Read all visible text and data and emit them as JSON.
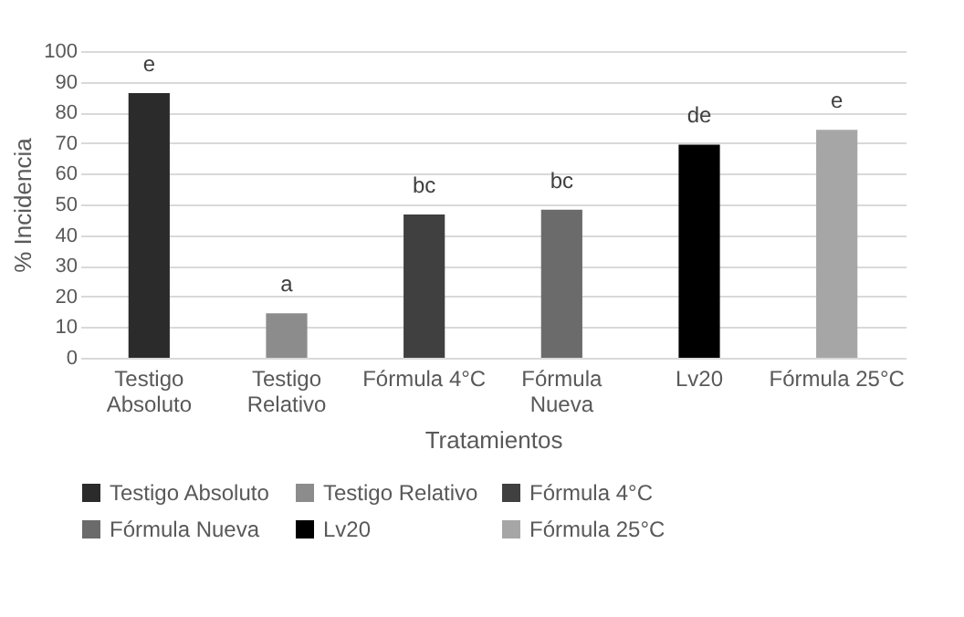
{
  "chart_data": {
    "type": "bar",
    "xlabel": "Tratamientos",
    "ylabel": "% Incidencia",
    "stacked": true,
    "categories": [
      "Testigo Absoluto",
      "Testigo Relativo",
      "Fórmula 4°C",
      "Fórmula Nueva",
      "Lv20",
      "Fórmula 25°C"
    ],
    "series": [
      {
        "name": "Testigo Absoluto",
        "color": "#2b2b2b",
        "values": [
          86.3,
          null,
          null,
          null,
          null,
          null
        ]
      },
      {
        "name": "Testigo Relativo",
        "color": "#8c8c8c",
        "values": [
          null,
          14.5,
          null,
          null,
          null,
          null
        ]
      },
      {
        "name": "Fórmula 4°C",
        "color": "#404040",
        "values": [
          null,
          null,
          46.7,
          null,
          null,
          null
        ]
      },
      {
        "name": "Fórmula Nueva",
        "color": "#6b6b6b",
        "values": [
          null,
          null,
          null,
          48.3,
          null,
          null
        ]
      },
      {
        "name": "Lv20",
        "color": "#000000",
        "values": [
          null,
          null,
          null,
          null,
          69.5,
          null
        ]
      },
      {
        "name": "Fórmula 25°C",
        "color": "#a6a6a6",
        "values": [
          null,
          null,
          null,
          null,
          null,
          74.3
        ]
      }
    ],
    "ylim": [
      0,
      100
    ],
    "yticks": [
      0,
      10,
      20,
      30,
      40,
      50,
      60,
      70,
      80,
      90,
      100
    ],
    "grid": "y",
    "legend": "bottom",
    "annotations": [
      {
        "text": "e",
        "x": "Testigo Absoluto",
        "y": 86.3
      },
      {
        "text": "a",
        "x": "Testigo Relativo",
        "y": 14.5
      },
      {
        "text": "bc",
        "x": "Fórmula 4°C",
        "y": 46.7
      },
      {
        "text": "bc",
        "x": "Fórmula Nueva",
        "y": 48.3
      },
      {
        "text": "de",
        "x": "Lv20",
        "y": 69.5
      },
      {
        "text": "e",
        "x": "Fórmula 25°C",
        "y": 74.3
      }
    ]
  }
}
